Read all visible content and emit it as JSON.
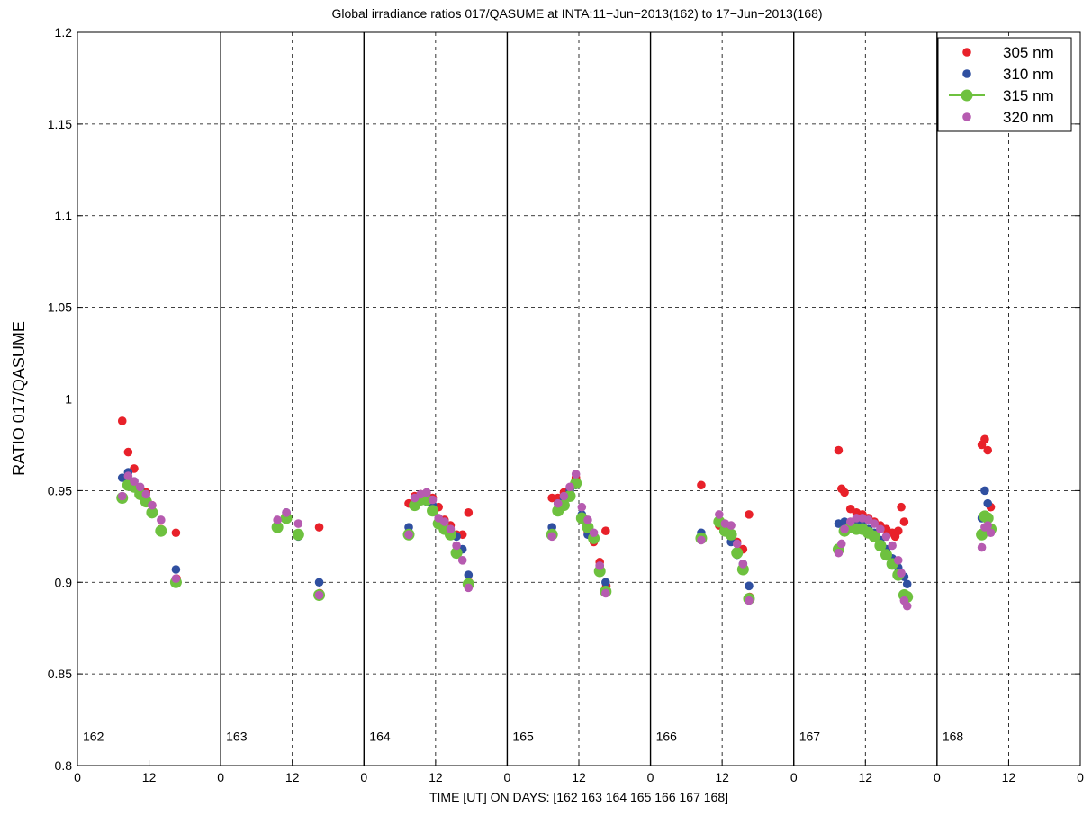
{
  "chart_data": {
    "type": "scatter",
    "title": "Global irradiance ratios 017/QASUME at INTA:11−Jun−2013(162) to 17−Jun−2013(168)",
    "xlabel": "TIME [UT]  ON  DAYS: [162  163  164  165  166  167  168]",
    "ylabel": "RATIO 017/QASUME",
    "xlim": [
      0,
      168
    ],
    "ylim": [
      0.8,
      1.2
    ],
    "y_ticks": [
      0.8,
      0.85,
      0.9,
      0.95,
      1,
      1.05,
      1.1,
      1.15,
      1.2
    ],
    "y_tick_labels": [
      "0.8",
      "0.85",
      "0.9",
      "0.95",
      "1",
      "1.05",
      "1.1",
      "1.15",
      "1.2"
    ],
    "x_ticks": [
      0,
      12,
      24,
      36,
      48,
      60,
      72,
      84,
      96,
      108,
      120,
      132,
      144,
      156,
      168
    ],
    "x_tick_labels": [
      "0",
      "12",
      "0",
      "12",
      "0",
      "12",
      "0",
      "12",
      "0",
      "12",
      "0",
      "12",
      "0",
      "12",
      "0"
    ],
    "day_separators": [
      24,
      48,
      72,
      96,
      120,
      144
    ],
    "day_labels": [
      {
        "x": 0,
        "label": "162"
      },
      {
        "x": 24,
        "label": "163"
      },
      {
        "x": 48,
        "label": "164"
      },
      {
        "x": 72,
        "label": "165"
      },
      {
        "x": 96,
        "label": "166"
      },
      {
        "x": 120,
        "label": "167"
      },
      {
        "x": 144,
        "label": "168"
      }
    ],
    "grid": true,
    "legend_position": "top-right",
    "series": [
      {
        "name": "305 nm",
        "color": "#e8212a",
        "marker_size": "small",
        "line": false,
        "points": [
          [
            7.5,
            0.988
          ],
          [
            8.5,
            0.971
          ],
          [
            9.5,
            0.962
          ],
          [
            10.5,
            0.951
          ],
          [
            11.5,
            0.949
          ],
          [
            12.5,
            0.942
          ],
          [
            14,
            0.929
          ],
          [
            16.5,
            0.927
          ],
          [
            16.6,
            0.902
          ],
          [
            33.5,
            0.931
          ],
          [
            35,
            0.937
          ],
          [
            37,
            0.926
          ],
          [
            40.5,
            0.93
          ],
          [
            40.6,
            0.894
          ],
          [
            55.5,
            0.943
          ],
          [
            56.5,
            0.947
          ],
          [
            57.5,
            0.948
          ],
          [
            58.5,
            0.947
          ],
          [
            59.5,
            0.946
          ],
          [
            60.5,
            0.941
          ],
          [
            61.5,
            0.934
          ],
          [
            62.5,
            0.931
          ],
          [
            63.5,
            0.926
          ],
          [
            64.5,
            0.926
          ],
          [
            65.5,
            0.938
          ],
          [
            65.6,
            0.9
          ],
          [
            79.5,
            0.946
          ],
          [
            80.5,
            0.946
          ],
          [
            81.5,
            0.949
          ],
          [
            82.5,
            0.951
          ],
          [
            83.5,
            0.957
          ],
          [
            84.5,
            0.936
          ],
          [
            85.5,
            0.928
          ],
          [
            86.5,
            0.922
          ],
          [
            87.5,
            0.911
          ],
          [
            88.5,
            0.928
          ],
          [
            88.6,
            0.898
          ],
          [
            104.5,
            0.953
          ],
          [
            107.5,
            0.931
          ],
          [
            108.5,
            0.928
          ],
          [
            109.5,
            0.926
          ],
          [
            110.5,
            0.922
          ],
          [
            111.5,
            0.918
          ],
          [
            112.5,
            0.937
          ],
          [
            112.6,
            0.892
          ],
          [
            127.5,
            0.972
          ],
          [
            128,
            0.951
          ],
          [
            128.5,
            0.949
          ],
          [
            129.5,
            0.94
          ],
          [
            130.5,
            0.938
          ],
          [
            131.5,
            0.937
          ],
          [
            132.5,
            0.935
          ],
          [
            133.5,
            0.933
          ],
          [
            134.5,
            0.931
          ],
          [
            135.5,
            0.929
          ],
          [
            136.5,
            0.927
          ],
          [
            137,
            0.925
          ],
          [
            137.5,
            0.928
          ],
          [
            138,
            0.941
          ],
          [
            138.5,
            0.933
          ],
          [
            138.6,
            0.892
          ],
          [
            151.5,
            0.975
          ],
          [
            152,
            0.978
          ],
          [
            152.5,
            0.972
          ],
          [
            153,
            0.941
          ]
        ]
      },
      {
        "name": "310 nm",
        "color": "#2f4fa0",
        "marker_size": "small",
        "line": false,
        "points": [
          [
            7.5,
            0.957
          ],
          [
            8.5,
            0.96
          ],
          [
            9.5,
            0.955
          ],
          [
            10.5,
            0.95
          ],
          [
            11.5,
            0.946
          ],
          [
            12.5,
            0.939
          ],
          [
            14,
            0.928
          ],
          [
            16.5,
            0.907
          ],
          [
            33.5,
            0.931
          ],
          [
            35,
            0.938
          ],
          [
            37,
            0.925
          ],
          [
            40.5,
            0.9
          ],
          [
            55.5,
            0.93
          ],
          [
            56.5,
            0.944
          ],
          [
            57.5,
            0.945
          ],
          [
            58.5,
            0.944
          ],
          [
            59.5,
            0.942
          ],
          [
            60.5,
            0.934
          ],
          [
            61.5,
            0.93
          ],
          [
            62.5,
            0.928
          ],
          [
            63.5,
            0.925
          ],
          [
            64.5,
            0.918
          ],
          [
            65.5,
            0.904
          ],
          [
            79.5,
            0.93
          ],
          [
            80.5,
            0.943
          ],
          [
            81.5,
            0.946
          ],
          [
            82.5,
            0.95
          ],
          [
            83.5,
            0.953
          ],
          [
            84.5,
            0.937
          ],
          [
            85.5,
            0.926
          ],
          [
            86.5,
            0.924
          ],
          [
            87.5,
            0.909
          ],
          [
            88.5,
            0.9
          ],
          [
            104.5,
            0.927
          ],
          [
            107.5,
            0.934
          ],
          [
            108.5,
            0.93
          ],
          [
            109.5,
            0.922
          ],
          [
            110.5,
            0.915
          ],
          [
            111.5,
            0.91
          ],
          [
            112.5,
            0.898
          ],
          [
            127.5,
            0.932
          ],
          [
            128.5,
            0.933
          ],
          [
            129.5,
            0.93
          ],
          [
            130.5,
            0.932
          ],
          [
            131.5,
            0.931
          ],
          [
            132.5,
            0.929
          ],
          [
            133.5,
            0.927
          ],
          [
            134.5,
            0.923
          ],
          [
            135.5,
            0.918
          ],
          [
            136.5,
            0.913
          ],
          [
            137.5,
            0.908
          ],
          [
            138.5,
            0.903
          ],
          [
            139,
            0.899
          ],
          [
            151.5,
            0.935
          ],
          [
            152,
            0.95
          ],
          [
            152.5,
            0.943
          ]
        ]
      },
      {
        "name": "315 nm",
        "color": "#6ec13f",
        "marker_size": "large",
        "line": true,
        "points": [
          [
            7.5,
            0.946
          ],
          [
            8.5,
            0.953
          ],
          [
            9.5,
            0.952
          ],
          [
            10.5,
            0.948
          ],
          [
            11.5,
            0.944
          ],
          [
            12.5,
            0.938
          ],
          [
            14,
            0.928
          ],
          [
            16.5,
            0.9
          ],
          [
            33.5,
            0.93
          ],
          [
            35,
            0.935
          ],
          [
            37,
            0.926
          ],
          [
            40.5,
            0.893
          ],
          [
            55.5,
            0.926
          ],
          [
            56.5,
            0.942
          ],
          [
            57.5,
            0.945
          ],
          [
            58.5,
            0.945
          ],
          [
            59.5,
            0.939
          ],
          [
            60.5,
            0.932
          ],
          [
            61.5,
            0.929
          ],
          [
            62.5,
            0.926
          ],
          [
            63.5,
            0.916
          ],
          [
            65.5,
            0.899
          ],
          [
            79.5,
            0.926
          ],
          [
            80.5,
            0.939
          ],
          [
            81.5,
            0.942
          ],
          [
            82.5,
            0.947
          ],
          [
            83.5,
            0.954
          ],
          [
            84.5,
            0.935
          ],
          [
            85.5,
            0.93
          ],
          [
            86.5,
            0.924
          ],
          [
            87.5,
            0.906
          ],
          [
            88.5,
            0.895
          ],
          [
            104.5,
            0.924
          ],
          [
            107.5,
            0.933
          ],
          [
            108.5,
            0.928
          ],
          [
            109.5,
            0.926
          ],
          [
            110.5,
            0.916
          ],
          [
            111.5,
            0.907
          ],
          [
            112.5,
            0.891
          ],
          [
            127.5,
            0.918
          ],
          [
            128.5,
            0.928
          ],
          [
            129.5,
            0.93
          ],
          [
            130.5,
            0.929
          ],
          [
            131.5,
            0.929
          ],
          [
            132.5,
            0.927
          ],
          [
            133.5,
            0.925
          ],
          [
            134.5,
            0.92
          ],
          [
            135.5,
            0.915
          ],
          [
            136.5,
            0.91
          ],
          [
            137.5,
            0.904
          ],
          [
            138.5,
            0.893
          ],
          [
            139,
            0.892
          ],
          [
            151.5,
            0.926
          ],
          [
            152,
            0.936
          ],
          [
            152.5,
            0.935
          ],
          [
            153,
            0.929
          ]
        ]
      },
      {
        "name": "320 nm",
        "color": "#b65bb0",
        "marker_size": "small",
        "line": false,
        "points": [
          [
            7.5,
            0.947
          ],
          [
            8.5,
            0.958
          ],
          [
            9.5,
            0.955
          ],
          [
            10.5,
            0.952
          ],
          [
            11.5,
            0.948
          ],
          [
            12.5,
            0.942
          ],
          [
            14,
            0.934
          ],
          [
            16.5,
            0.902
          ],
          [
            33.5,
            0.934
          ],
          [
            35,
            0.938
          ],
          [
            37,
            0.932
          ],
          [
            40.5,
            0.893
          ],
          [
            55.5,
            0.926
          ],
          [
            56.5,
            0.946
          ],
          [
            57.5,
            0.948
          ],
          [
            58.5,
            0.949
          ],
          [
            59.5,
            0.945
          ],
          [
            60.5,
            0.935
          ],
          [
            61.5,
            0.933
          ],
          [
            62.5,
            0.929
          ],
          [
            63.5,
            0.92
          ],
          [
            64.5,
            0.912
          ],
          [
            65.5,
            0.897
          ],
          [
            79.5,
            0.925
          ],
          [
            80.5,
            0.943
          ],
          [
            81.5,
            0.947
          ],
          [
            82.5,
            0.952
          ],
          [
            83.5,
            0.959
          ],
          [
            84.5,
            0.941
          ],
          [
            85.5,
            0.934
          ],
          [
            86.5,
            0.927
          ],
          [
            87.5,
            0.909
          ],
          [
            88.5,
            0.894
          ],
          [
            104.5,
            0.923
          ],
          [
            107.5,
            0.937
          ],
          [
            108.5,
            0.932
          ],
          [
            109.5,
            0.931
          ],
          [
            110.5,
            0.921
          ],
          [
            111.5,
            0.91
          ],
          [
            112.5,
            0.89
          ],
          [
            127.5,
            0.916
          ],
          [
            128,
            0.921
          ],
          [
            128.5,
            0.929
          ],
          [
            129.5,
            0.933
          ],
          [
            130.5,
            0.935
          ],
          [
            131.5,
            0.935
          ],
          [
            132.5,
            0.934
          ],
          [
            133.5,
            0.932
          ],
          [
            134.5,
            0.929
          ],
          [
            135.5,
            0.925
          ],
          [
            136.5,
            0.92
          ],
          [
            137.5,
            0.912
          ],
          [
            138,
            0.905
          ],
          [
            138.5,
            0.89
          ],
          [
            139,
            0.887
          ],
          [
            151.5,
            0.919
          ],
          [
            152,
            0.93
          ],
          [
            152.5,
            0.931
          ],
          [
            153,
            0.927
          ]
        ]
      }
    ]
  }
}
